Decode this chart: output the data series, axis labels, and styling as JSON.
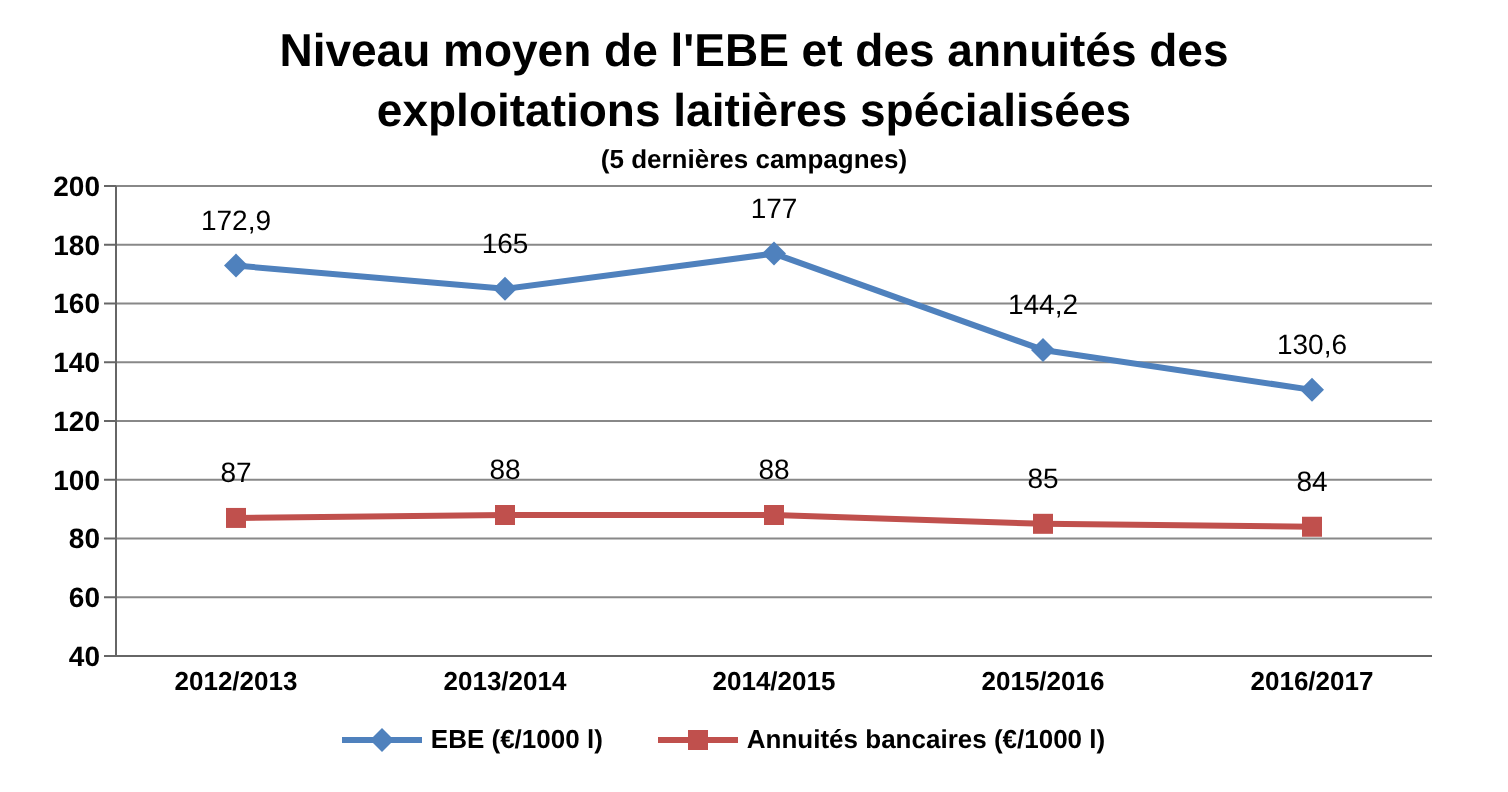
{
  "chart_data": {
    "type": "line",
    "title": "Niveau moyen de l'EBE et des annuités des exploitations laitières spécialisées",
    "subtitle": "(5 dernières campagnes)",
    "categories": [
      "2012/2013",
      "2013/2014",
      "2014/2015",
      "2015/2016",
      "2016/2017"
    ],
    "series": [
      {
        "name": "EBE (€/1000 l)",
        "color": "#4f81bd",
        "marker": "diamond",
        "values": [
          172.9,
          165,
          177,
          144.2,
          130.6
        ],
        "value_labels": [
          "172,9",
          "165",
          "177",
          "144,2",
          "130,6"
        ]
      },
      {
        "name": "Annuités bancaires (€/1000 l)",
        "color": "#c0504d",
        "marker": "square",
        "values": [
          87,
          88,
          88,
          85,
          84
        ],
        "value_labels": [
          "87",
          "88",
          "88",
          "85",
          "84"
        ]
      }
    ],
    "ylim": [
      40,
      200
    ],
    "yticks": [
      40,
      60,
      80,
      100,
      120,
      140,
      160,
      180,
      200
    ],
    "grid": "y",
    "legend": "bottom",
    "line_style": "solid"
  }
}
